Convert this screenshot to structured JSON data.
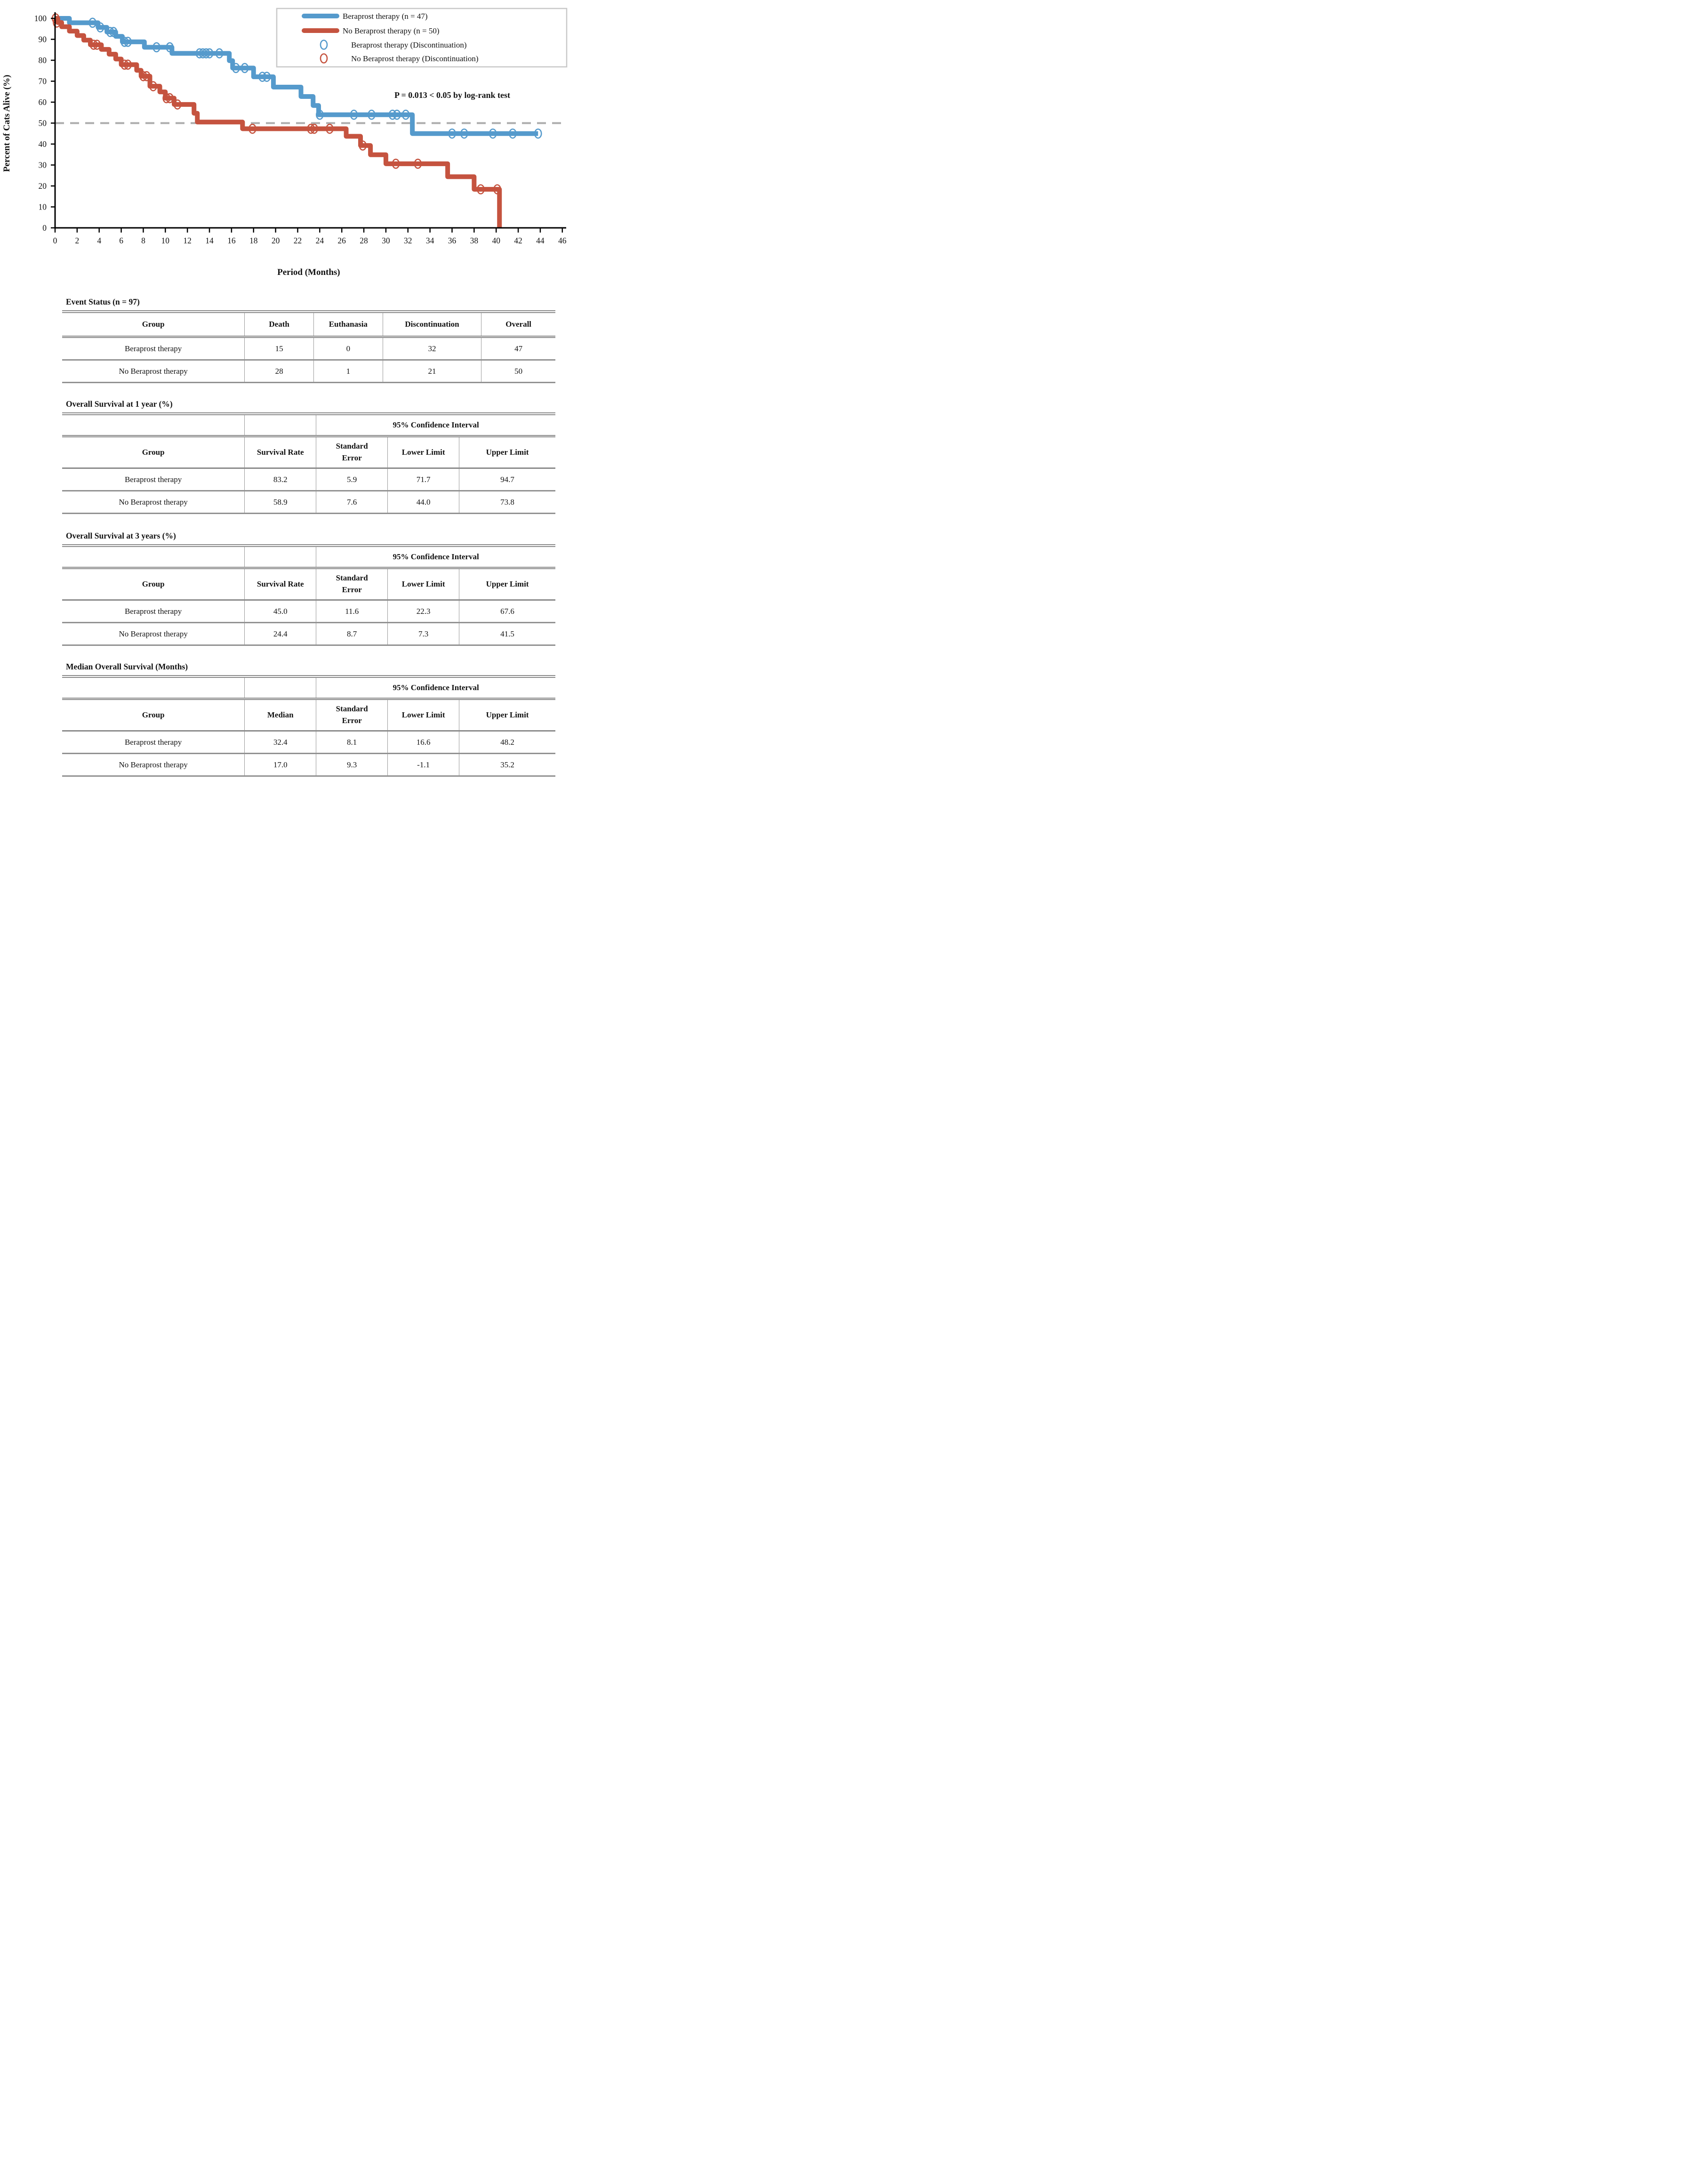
{
  "chart_data": {
    "type": "line",
    "subtype": "kaplan-meier-step",
    "title": "",
    "xlabel": "Period (Months)",
    "ylabel": "Percent of Cats Alive (%)",
    "xlim": [
      0,
      46
    ],
    "ylim": [
      0,
      100
    ],
    "xtick_step": 2,
    "ytick_step": 10,
    "grid": "off",
    "legend_position": "top-right",
    "reference_line": {
      "y": 50,
      "style": "dashed",
      "color": "#ACACAC"
    },
    "annotation": "P = 0.013 < 0.05 by log-rank test",
    "legend": [
      {
        "label": "Beraprost therapy (n = 47)",
        "marker": "line",
        "color": "#559ACC"
      },
      {
        "label": "No Beraprost therapy (n = 50)",
        "marker": "line",
        "color": "#C5533F"
      },
      {
        "label": "Beraprost therapy (Discontinuation)",
        "marker": "circle",
        "color": "#559ACC"
      },
      {
        "label": "No Beraprost therapy (Discontinuation)",
        "marker": "circle",
        "color": "#C5533F"
      }
    ],
    "series": [
      {
        "id": "beraprost",
        "name": "Beraprost therapy (n = 47)",
        "color": "#559ACC",
        "end_month": 43.8,
        "steps": [
          [
            0,
            100
          ],
          [
            1.3,
            97.9
          ],
          [
            3.9,
            95.7
          ],
          [
            4.7,
            93.5
          ],
          [
            5.5,
            91.4
          ],
          [
            6.1,
            88.8
          ],
          [
            8.1,
            86.2
          ],
          [
            10.6,
            83.3
          ],
          [
            15.8,
            79.8
          ],
          [
            16.1,
            76.3
          ],
          [
            18.0,
            72.1
          ],
          [
            19.8,
            67.2
          ],
          [
            22.3,
            62.7
          ],
          [
            23.4,
            58.4
          ],
          [
            23.9,
            54.0
          ],
          [
            32.4,
            45.0
          ]
        ],
        "censors": [
          [
            3.4,
            97.9
          ],
          [
            4.1,
            95.7
          ],
          [
            5.0,
            93.5
          ],
          [
            5.3,
            93.5
          ],
          [
            6.3,
            88.8
          ],
          [
            6.6,
            88.8
          ],
          [
            9.2,
            86.2
          ],
          [
            10.4,
            86.2
          ],
          [
            13.1,
            83.3
          ],
          [
            13.4,
            83.3
          ],
          [
            13.7,
            83.3
          ],
          [
            14.0,
            83.3
          ],
          [
            14.9,
            83.3
          ],
          [
            16.4,
            76.3
          ],
          [
            17.2,
            76.3
          ],
          [
            18.8,
            72.1
          ],
          [
            19.2,
            72.1
          ],
          [
            24.0,
            54.0
          ],
          [
            27.1,
            54.0
          ],
          [
            28.7,
            54.0
          ],
          [
            30.6,
            54.0
          ],
          [
            31.0,
            54.0
          ],
          [
            31.8,
            54.0
          ],
          [
            36.0,
            45.0
          ],
          [
            37.1,
            45.0
          ],
          [
            39.7,
            45.0
          ],
          [
            41.5,
            45.0
          ],
          [
            43.8,
            45.0
          ]
        ]
      },
      {
        "id": "no-beraprost",
        "name": "No Beraprost therapy (n = 50)",
        "color": "#C5533F",
        "end_month": 40.3,
        "steps": [
          [
            0,
            100
          ],
          [
            0.25,
            98
          ],
          [
            0.6,
            96
          ],
          [
            1.3,
            93.9
          ],
          [
            2.0,
            91.8
          ],
          [
            2.6,
            89.6
          ],
          [
            3.2,
            87.4
          ],
          [
            4.2,
            85.2
          ],
          [
            4.9,
            82.9
          ],
          [
            5.5,
            80.6
          ],
          [
            6.0,
            77.9
          ],
          [
            7.4,
            75.2
          ],
          [
            7.8,
            72.4
          ],
          [
            8.6,
            67.6
          ],
          [
            9.5,
            64.9
          ],
          [
            10.0,
            61.9
          ],
          [
            10.8,
            58.9
          ],
          [
            12.6,
            54.7
          ],
          [
            12.9,
            50.5
          ],
          [
            17.0,
            47.3
          ],
          [
            26.4,
            43.7
          ],
          [
            27.7,
            39.3
          ],
          [
            28.6,
            34.9
          ],
          [
            30.0,
            30.6
          ],
          [
            35.6,
            24.4
          ],
          [
            38.0,
            18.4
          ],
          [
            40.3,
            0
          ]
        ],
        "censors": [
          [
            0.05,
            100
          ],
          [
            0.15,
            98
          ],
          [
            3.5,
            87.4
          ],
          [
            3.8,
            87.4
          ],
          [
            6.3,
            77.9
          ],
          [
            6.6,
            77.9
          ],
          [
            8.0,
            72.4
          ],
          [
            8.3,
            72.4
          ],
          [
            8.9,
            67.6
          ],
          [
            10.1,
            61.9
          ],
          [
            10.4,
            61.9
          ],
          [
            11.1,
            58.9
          ],
          [
            17.9,
            47.3
          ],
          [
            23.2,
            47.3
          ],
          [
            23.5,
            47.3
          ],
          [
            24.9,
            47.3
          ],
          [
            27.9,
            39.3
          ],
          [
            30.9,
            30.6
          ],
          [
            32.9,
            30.6
          ],
          [
            38.6,
            18.4
          ],
          [
            40.1,
            18.4
          ]
        ]
      }
    ]
  },
  "tables": {
    "event_status": {
      "title": "Event Status (n = 97)",
      "columns": {
        "group": "Group",
        "death": "Death",
        "euthanasia": "Euthanasia",
        "discontinuation": "Discontinuation",
        "overall": "Overall"
      },
      "rows": [
        {
          "group": "Beraprost therapy",
          "death": "15",
          "euthanasia": "0",
          "discontinuation": "32",
          "overall": "47"
        },
        {
          "group": "No Beraprost therapy",
          "death": "28",
          "euthanasia": "1",
          "discontinuation": "21",
          "overall": "50"
        }
      ]
    },
    "os_1yr": {
      "title": "Overall Survival at 1 year (%)",
      "ci_header": "95% Confidence Interval",
      "columns": {
        "group": "Group",
        "value": "Survival Rate",
        "se": "Standard Error",
        "lower": "Lower Limit",
        "upper": "Upper Limit"
      },
      "rows": [
        {
          "group": "Beraprost therapy",
          "value": "83.2",
          "se": "5.9",
          "lower": "71.7",
          "upper": "94.7"
        },
        {
          "group": "No Beraprost therapy",
          "value": "58.9",
          "se": "7.6",
          "lower": "44.0",
          "upper": "73.8"
        }
      ]
    },
    "os_3yr": {
      "title": "Overall Survival at 3 years (%)",
      "ci_header": "95% Confidence Interval",
      "columns": {
        "group": "Group",
        "value": "Survival Rate",
        "se": "Standard Error",
        "lower": "Lower Limit",
        "upper": "Upper Limit"
      },
      "rows": [
        {
          "group": "Beraprost therapy",
          "value": "45.0",
          "se": "11.6",
          "lower": "22.3",
          "upper": "67.6"
        },
        {
          "group": "No Beraprost therapy",
          "value": "24.4",
          "se": "8.7",
          "lower": "7.3",
          "upper": "41.5"
        }
      ]
    },
    "median_os": {
      "title": "Median Overall Survival (Months)",
      "ci_header": "95% Confidence Interval",
      "columns": {
        "group": "Group",
        "value": "Median",
        "se": "Standard Error",
        "lower": "Lower Limit",
        "upper": "Upper Limit"
      },
      "rows": [
        {
          "group": "Beraprost therapy",
          "value": "32.4",
          "se": "8.1",
          "lower": "16.6",
          "upper": "48.2"
        },
        {
          "group": "No Beraprost therapy",
          "value": "17.0",
          "se": "9.3",
          "lower": "-1.1",
          "upper": "35.2"
        }
      ]
    }
  }
}
